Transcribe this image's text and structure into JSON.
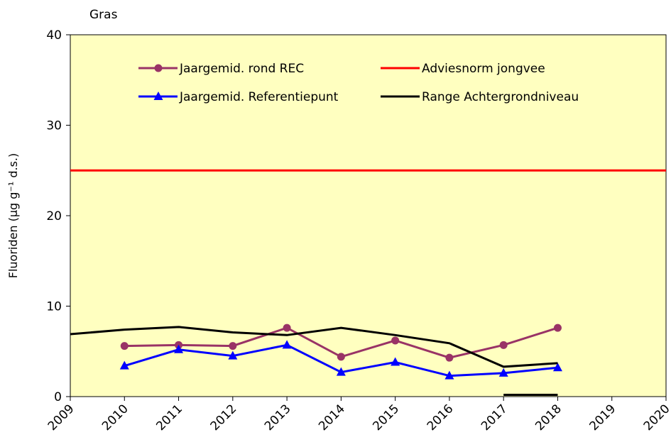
{
  "chart_data": {
    "type": "line",
    "title": "Gras",
    "y_label": "Fluoriden (µg g⁻¹ d.s.)",
    "x": [
      2009,
      2010,
      2011,
      2012,
      2013,
      2014,
      2015,
      2016,
      2017,
      2018,
      2019,
      2020
    ],
    "xlim": [
      2009,
      2020
    ],
    "xticks": [
      2009,
      2010,
      2011,
      2012,
      2013,
      2014,
      2015,
      2016,
      2017,
      2018,
      2019,
      2020
    ],
    "ylim": [
      0,
      40
    ],
    "yticks": [
      0,
      10,
      20,
      30,
      40
    ],
    "background": "#ffffc0",
    "series": [
      {
        "name": "Jaargemid. rond REC",
        "color": "#993366",
        "marker": "circle",
        "values": [
          null,
          5.6,
          5.7,
          5.6,
          7.6,
          4.4,
          6.2,
          4.3,
          5.7,
          7.6,
          null,
          null
        ]
      },
      {
        "name": "Adviesnorm jongvee",
        "color": "#ff0000",
        "marker": null,
        "values": [
          25,
          25,
          25,
          25,
          25,
          25,
          25,
          25,
          25,
          25,
          25,
          25
        ]
      },
      {
        "name": "Jaargemid. Referentiepunt",
        "color": "#0000ff",
        "marker": "triangle",
        "values": [
          null,
          3.4,
          5.2,
          4.5,
          5.7,
          2.7,
          3.8,
          2.3,
          2.6,
          3.2,
          null,
          null
        ]
      },
      {
        "name": "Range Achtergrondniveau",
        "color": "#000000",
        "marker": null,
        "values": [
          6.9,
          7.4,
          7.7,
          7.1,
          6.8,
          7.6,
          6.8,
          5.9,
          3.3,
          3.7,
          null,
          null
        ],
        "lower_values": [
          null,
          null,
          null,
          null,
          null,
          null,
          null,
          null,
          0.2,
          0.2,
          null,
          null
        ]
      }
    ]
  }
}
